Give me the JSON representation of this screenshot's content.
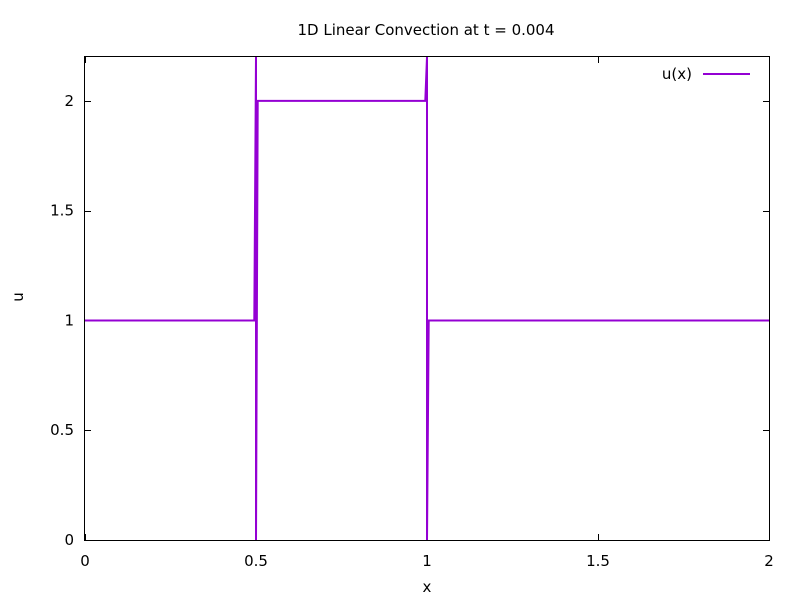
{
  "chart_data": {
    "type": "line",
    "title": "1D Linear Convection at t = 0.004",
    "xlabel": "x",
    "ylabel": "u",
    "xlim": [
      0,
      2
    ],
    "ylim": [
      0,
      2.2
    ],
    "xticks": [
      0,
      0.5,
      1,
      1.5,
      2
    ],
    "xtick_labels": [
      "0",
      "0.5",
      "1",
      "1.5",
      "2"
    ],
    "yticks": [
      0,
      0.5,
      1,
      1.5,
      2
    ],
    "ytick_labels": [
      "0",
      "0.5",
      "1",
      "1.5",
      "2"
    ],
    "grid": false,
    "legend_position": "top-right",
    "series": [
      {
        "name": "u(x)",
        "color": "#9400d3",
        "points": [
          [
            0,
            1
          ],
          [
            0.495,
            1
          ],
          [
            0.5,
            2.2
          ],
          [
            0.5,
            0
          ],
          [
            0.505,
            2
          ],
          [
            0.995,
            2
          ],
          [
            1.0,
            2.2
          ],
          [
            1.0,
            0
          ],
          [
            1.005,
            1
          ],
          [
            2,
            1
          ]
        ]
      }
    ]
  }
}
